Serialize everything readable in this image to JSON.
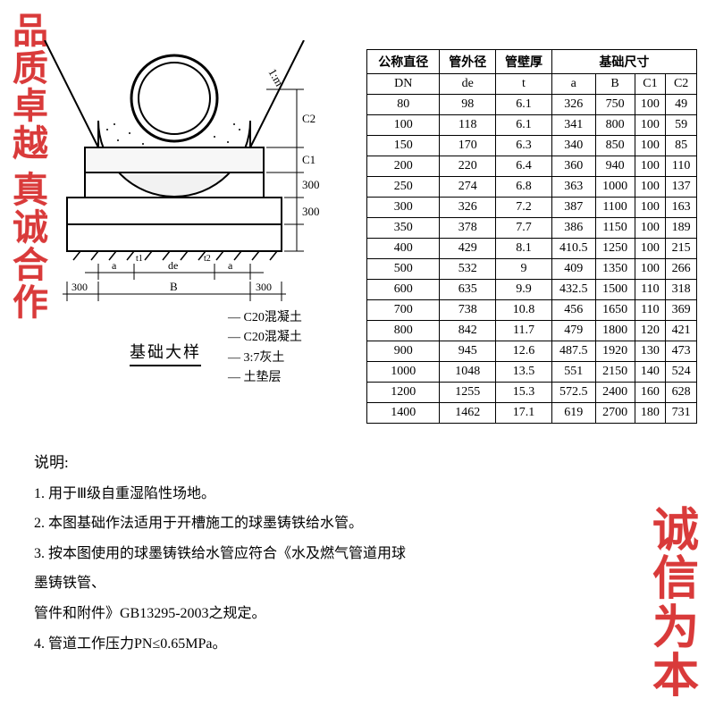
{
  "diagram": {
    "title": "基础大样",
    "slope_label": "1:m",
    "dim_c2": "C2",
    "dim_c1": "C1",
    "dim_300a": "300",
    "dim_300b": "300",
    "dim_a_left": "a",
    "dim_de": "de",
    "dim_a_right": "a",
    "dim_t1": "t1",
    "dim_t2": "t2",
    "dim_300_l": "300",
    "dim_B": "B",
    "dim_300_r": "300",
    "legend": {
      "l1": "C20混凝土",
      "l2": "C20混凝土",
      "l3": "3:7灰土",
      "l4": "土垫层"
    },
    "colors": {
      "stroke": "#000000",
      "bg": "#ffffff",
      "dotfill": "#eeeeee"
    }
  },
  "notes": {
    "title": "说明:",
    "items": [
      "1. 用于Ⅲ级自重湿陷性场地。",
      "2. 本图基础作法适用于开槽施工的球墨铸铁给水管。",
      "3. 按本图使用的球墨铸铁给水管应符合《水及燃气管道用球墨铸铁管、",
      "管件和附件》GB13295-2003之规定。",
      "4. 管道工作压力PN≤0.65MPa。"
    ]
  },
  "table": {
    "header_top": {
      "c0": "公称直径",
      "c1": "管外径",
      "c2": "管壁厚",
      "c3": "基础尺寸"
    },
    "header_sub": {
      "c0": "DN",
      "c1": "de",
      "c2": "t",
      "c3": "a",
      "c4": "B",
      "c5": "C1",
      "c6": "C2"
    },
    "rows": [
      [
        "80",
        "98",
        "6.1",
        "326",
        "750",
        "100",
        "49"
      ],
      [
        "100",
        "118",
        "6.1",
        "341",
        "800",
        "100",
        "59"
      ],
      [
        "150",
        "170",
        "6.3",
        "340",
        "850",
        "100",
        "85"
      ],
      [
        "200",
        "220",
        "6.4",
        "360",
        "940",
        "100",
        "110"
      ],
      [
        "250",
        "274",
        "6.8",
        "363",
        "1000",
        "100",
        "137"
      ],
      [
        "300",
        "326",
        "7.2",
        "387",
        "1100",
        "100",
        "163"
      ],
      [
        "350",
        "378",
        "7.7",
        "386",
        "1150",
        "100",
        "189"
      ],
      [
        "400",
        "429",
        "8.1",
        "410.5",
        "1250",
        "100",
        "215"
      ],
      [
        "500",
        "532",
        "9",
        "409",
        "1350",
        "100",
        "266"
      ],
      [
        "600",
        "635",
        "9.9",
        "432.5",
        "1500",
        "110",
        "318"
      ],
      [
        "700",
        "738",
        "10.8",
        "456",
        "1650",
        "110",
        "369"
      ],
      [
        "800",
        "842",
        "11.7",
        "479",
        "1800",
        "120",
        "421"
      ],
      [
        "900",
        "945",
        "12.6",
        "487.5",
        "1920",
        "130",
        "473"
      ],
      [
        "1000",
        "1048",
        "13.5",
        "551",
        "2150",
        "140",
        "524"
      ],
      [
        "1200",
        "1255",
        "15.3",
        "572.5",
        "2400",
        "160",
        "628"
      ],
      [
        "1400",
        "1462",
        "17.1",
        "619",
        "2700",
        "180",
        "731"
      ]
    ]
  },
  "slogans": {
    "top_left": "品质卓越 真诚合作",
    "bottom_right": "诚信为本"
  }
}
